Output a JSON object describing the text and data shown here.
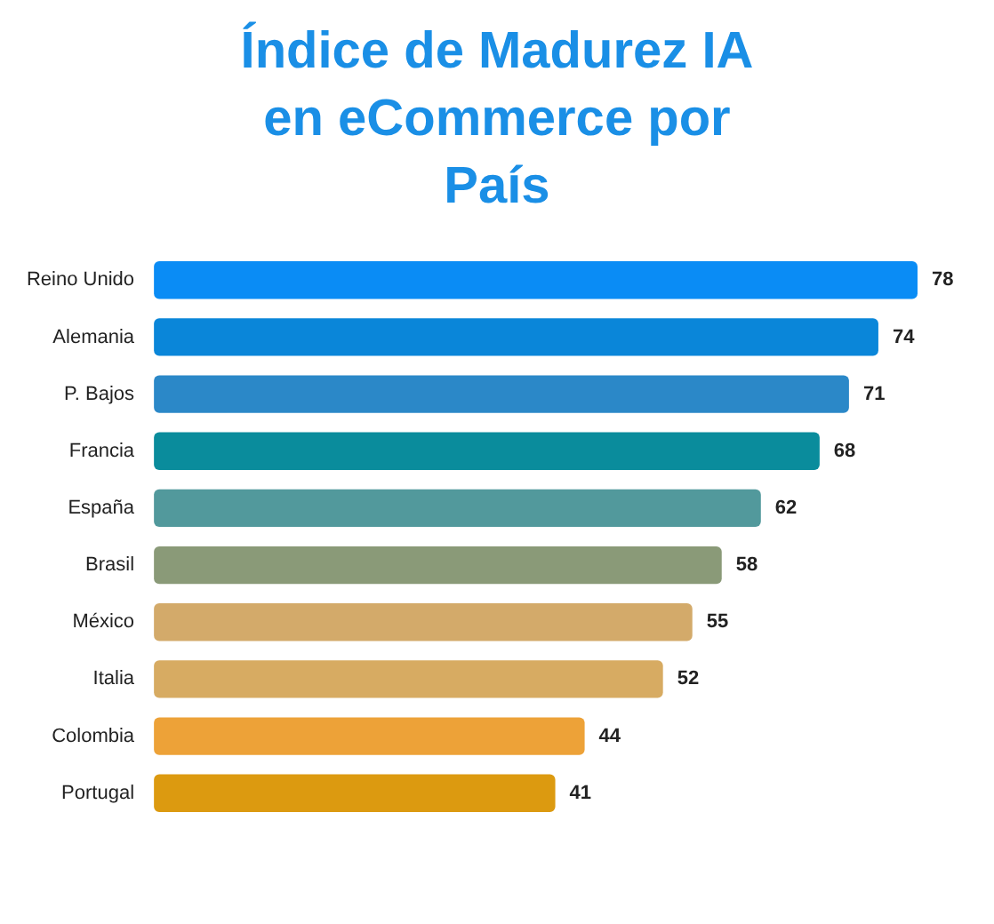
{
  "chart_data": {
    "type": "bar",
    "orientation": "horizontal",
    "title": "Índice de Madurez IA en eCommerce por País",
    "categories": [
      "Reino Unido",
      "Alemania",
      "P. Bajos",
      "Francia",
      "España",
      "Brasil",
      "México",
      "Italia",
      "Colombia",
      "Portugal"
    ],
    "values": [
      78,
      74,
      71,
      68,
      62,
      58,
      55,
      52,
      44,
      41
    ],
    "colors": [
      "#0a8cf5",
      "#0a86d9",
      "#2b88c8",
      "#0a8c9c",
      "#52999c",
      "#8a9a78",
      "#d3aa6a",
      "#d7ab62",
      "#eda238",
      "#dc9a10"
    ],
    "data_labels": true
  }
}
